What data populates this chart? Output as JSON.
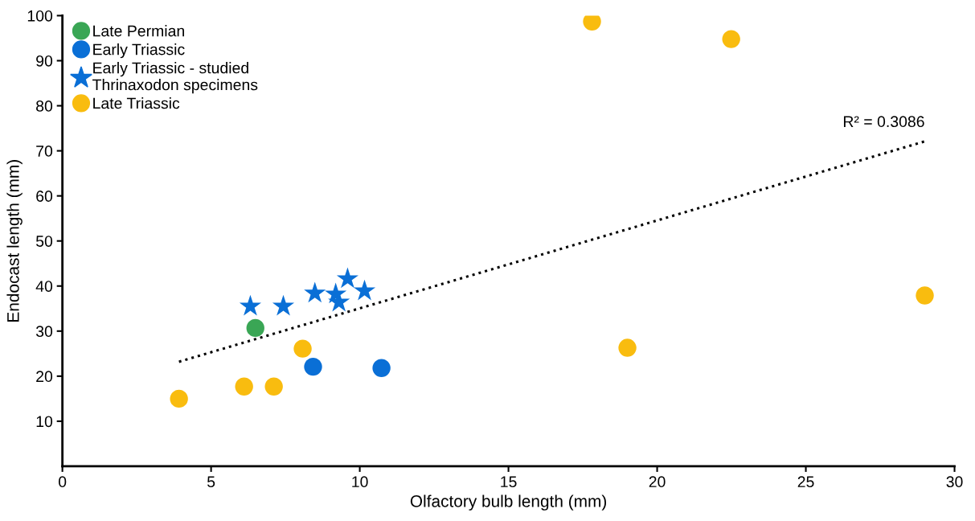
{
  "chart_data": {
    "type": "scatter",
    "xlabel": "Olfactory bulb length (mm)",
    "ylabel": "Endocast length (mm)",
    "xlim": [
      0,
      30
    ],
    "ylim": [
      0,
      100
    ],
    "xticks": [
      0,
      5,
      10,
      15,
      20,
      25,
      30
    ],
    "yticks": [
      10,
      20,
      30,
      40,
      50,
      60,
      70,
      80,
      90,
      100
    ],
    "grid": false,
    "legend": "top left",
    "series": [
      {
        "name": "Late Permian",
        "color": "#3aa655",
        "marker": "circle",
        "x": [
          6.49
        ],
        "values": [
          30.7
        ]
      },
      {
        "name": "Early Triassic",
        "color": "#0a6fd6",
        "marker": "circle",
        "x": [
          8.43,
          10.73
        ],
        "values": [
          22.1,
          21.8
        ]
      },
      {
        "name": "Early Triassic - studied\nThrinaxodon specimens",
        "color": "#0a6fd6",
        "marker": "star",
        "x": [
          6.32,
          7.43,
          8.49,
          9.19,
          9.3,
          9.59,
          10.16
        ],
        "values": [
          35.5,
          35.5,
          38.4,
          38.2,
          36.4,
          41.6,
          38.9
        ]
      },
      {
        "name": "Late Triassic",
        "color": "#f9bc0f",
        "marker": "circle",
        "x": [
          3.92,
          6.11,
          7.11,
          8.08,
          17.81,
          19.0,
          22.49,
          29.0
        ],
        "values": [
          15.0,
          17.7,
          17.7,
          26.1,
          98.7,
          26.3,
          94.8,
          37.9
        ]
      },
      {
        "type": "line",
        "color": "#000000",
        "line_style": "dotted",
        "marker": "none",
        "x": [
          3.92,
          29.0
        ],
        "values": [
          23.2,
          72.1
        ]
      }
    ],
    "annotations": [
      {
        "text": "R² = 0.3086",
        "x": 29.0,
        "y": 72.1
      }
    ]
  }
}
